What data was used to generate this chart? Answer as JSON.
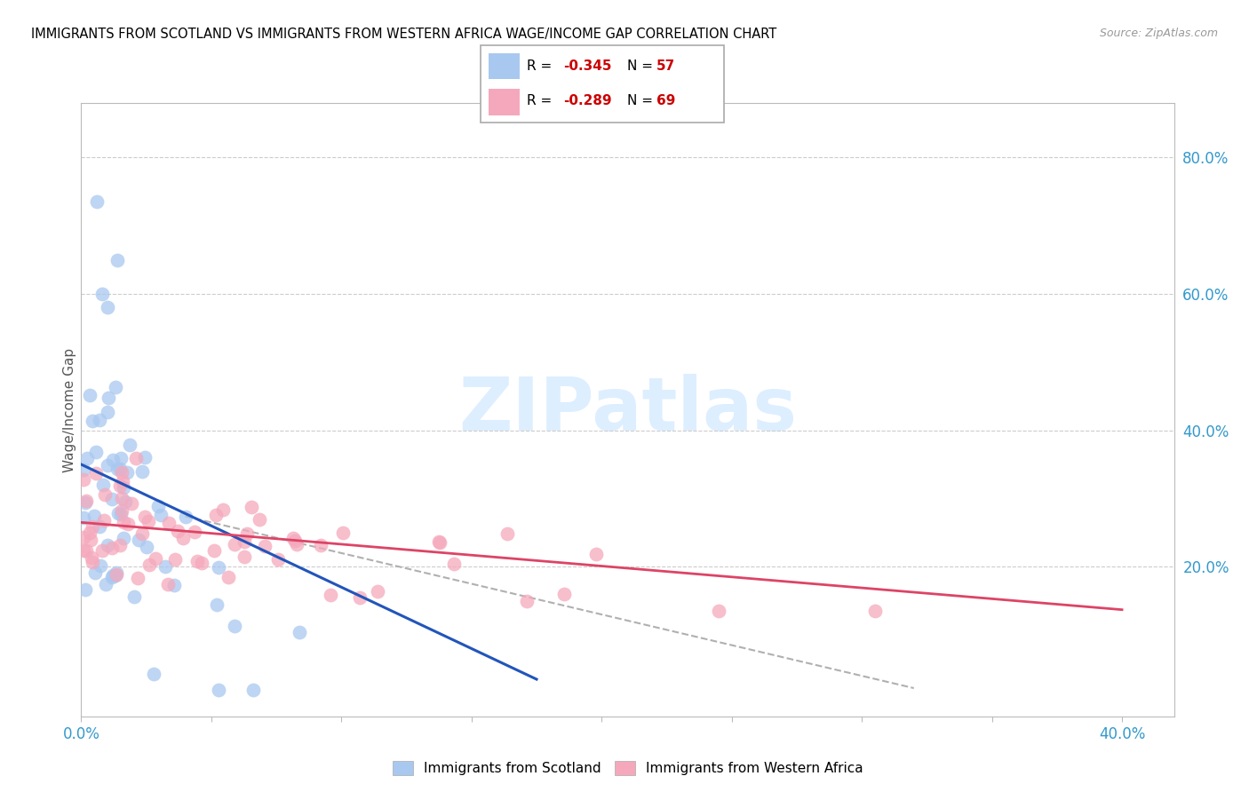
{
  "title": "IMMIGRANTS FROM SCOTLAND VS IMMIGRANTS FROM WESTERN AFRICA WAGE/INCOME GAP CORRELATION CHART",
  "source": "Source: ZipAtlas.com",
  "ylabel": "Wage/Income Gap",
  "xlim": [
    0.0,
    0.42
  ],
  "ylim": [
    -0.02,
    0.88
  ],
  "y_ticks_right": [
    0.2,
    0.4,
    0.6,
    0.8
  ],
  "y_tick_labels_right": [
    "20.0%",
    "40.0%",
    "60.0%",
    "80.0%"
  ],
  "x_tick_positions": [
    0.0,
    0.05,
    0.1,
    0.15,
    0.2,
    0.25,
    0.3,
    0.35,
    0.4
  ],
  "x_tick_labels": [
    "0.0%",
    "",
    "",
    "",
    "",
    "",
    "",
    "",
    "40.0%"
  ],
  "scotland_color": "#a8c8f0",
  "western_africa_color": "#f5a8bc",
  "trend_scotland_color": "#2255bb",
  "trend_western_africa_color": "#dd4466",
  "trend_dashed_color": "#b0b0b0",
  "watermark_text": "ZIPatlas",
  "watermark_color": "#ddeeff",
  "legend_R_scotland": "-0.345",
  "legend_N_scotland": "57",
  "legend_R_western_africa": "-0.289",
  "legend_N_western_africa": "69",
  "sc_seed": 7,
  "wa_seed": 13
}
